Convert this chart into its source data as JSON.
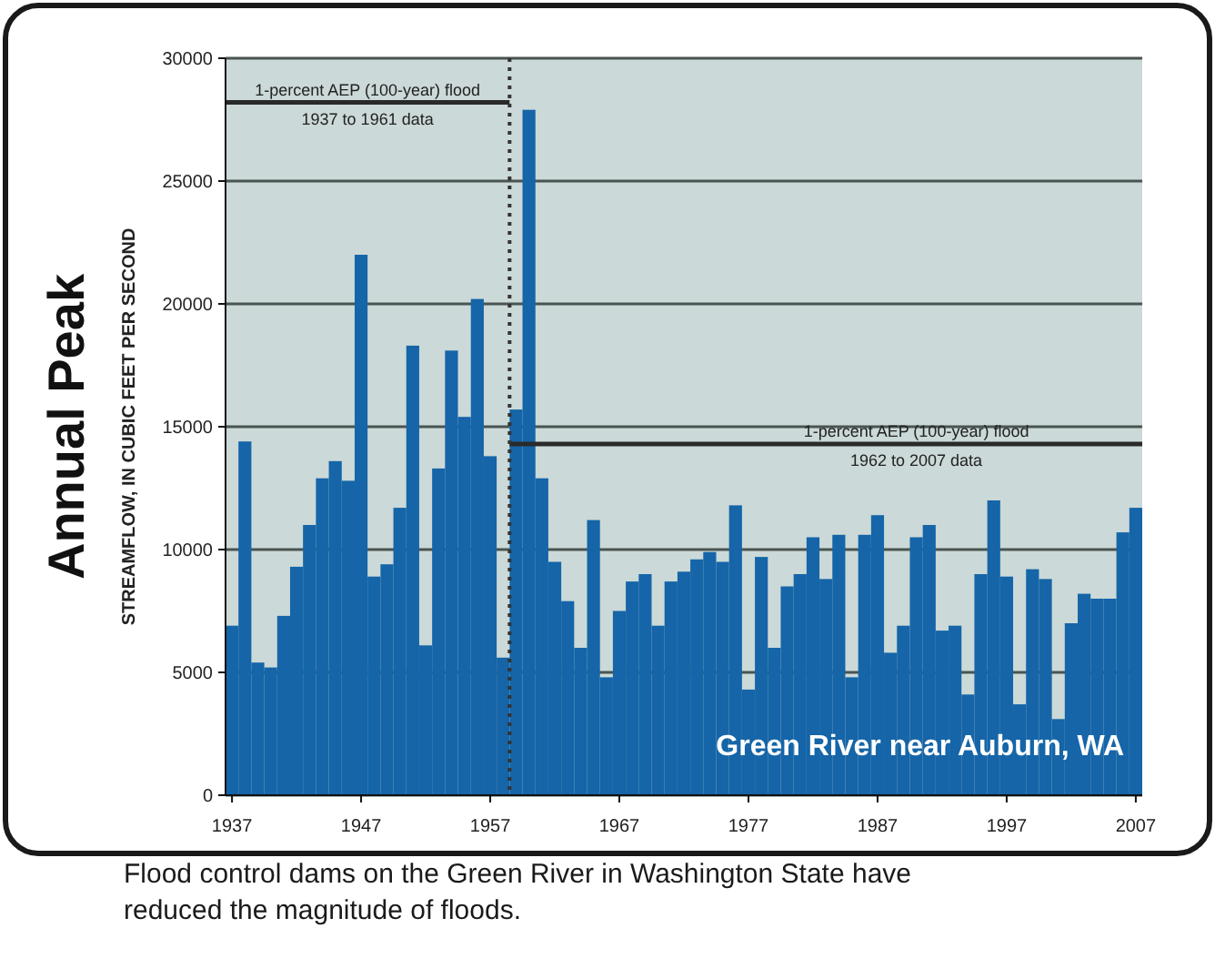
{
  "chart_data": {
    "type": "bar",
    "title": "Annual Peak",
    "ylabel": "STREAMFLOW, IN CUBIC FEET PER SECOND",
    "x": [
      1937,
      1938,
      1939,
      1940,
      1941,
      1942,
      1943,
      1944,
      1945,
      1946,
      1947,
      1948,
      1949,
      1950,
      1951,
      1952,
      1953,
      1954,
      1955,
      1956,
      1957,
      1958,
      1959,
      1960,
      1961,
      1962,
      1963,
      1964,
      1965,
      1966,
      1967,
      1968,
      1969,
      1970,
      1971,
      1972,
      1973,
      1974,
      1975,
      1976,
      1977,
      1978,
      1979,
      1980,
      1981,
      1982,
      1983,
      1984,
      1985,
      1986,
      1987,
      1988,
      1989,
      1990,
      1991,
      1992,
      1993,
      1994,
      1995,
      1996,
      1997,
      1998,
      1999,
      2000,
      2001,
      2002,
      2003,
      2004,
      2005,
      2006,
      2007
    ],
    "series": [
      {
        "color": "#1565a8",
        "values": [
          6900,
          14400,
          5400,
          5200,
          7300,
          9300,
          11000,
          12900,
          13600,
          12800,
          22000,
          8900,
          9400,
          11700,
          18300,
          6100,
          13300,
          18100,
          15400,
          20200,
          13800,
          5600,
          15700,
          27900,
          12900,
          9500,
          7900,
          6000,
          11200,
          4800,
          7500,
          8700,
          9000,
          6900,
          8700,
          9100,
          9600,
          9900,
          9500,
          11800,
          4300,
          9700,
          6000,
          8500,
          9000,
          10500,
          8800,
          10600,
          4800,
          10600,
          11400,
          5800,
          6900,
          10500,
          11000,
          6700,
          6900,
          4100,
          9000,
          12000,
          8900,
          3700,
          9200,
          8800,
          3100,
          7000,
          8200,
          8000,
          8000,
          10700,
          11700
        ]
      },
      {
        "type": "line",
        "color": "#2a2a2a",
        "x": [
          1936.5,
          1958.5
        ],
        "values": [
          28200,
          28200
        ]
      },
      {
        "type": "line",
        "color": "#2a2a2a",
        "x": [
          1958.5,
          2007.5
        ],
        "values": [
          14300,
          14300
        ]
      }
    ],
    "ref_lines": [
      {
        "axis": "x",
        "value": 1958.5,
        "color": "#333333",
        "line_style": "dotted"
      }
    ],
    "annotations": [
      {
        "text": "1-percent AEP (100-year) flood\n1937 to 1961 data",
        "x": 1947.5,
        "y": 28200
      },
      {
        "text": "1-percent AEP (100-year) flood\n1962 to 2007 data",
        "x": 1990,
        "y": 14300
      },
      "Green River near Auburn, WA",
      "Flood control dams on the Green River in Washington State have\nreduced the magnitude of floods."
    ],
    "xlim": [
      1936.5,
      2007.5
    ],
    "xticks": [
      1937,
      1947,
      1957,
      1967,
      1977,
      1987,
      1997,
      2007
    ],
    "ylim": [
      0,
      30000
    ],
    "yticks": [
      0,
      5000,
      10000,
      15000,
      20000,
      25000,
      30000
    ],
    "grid": "y"
  }
}
